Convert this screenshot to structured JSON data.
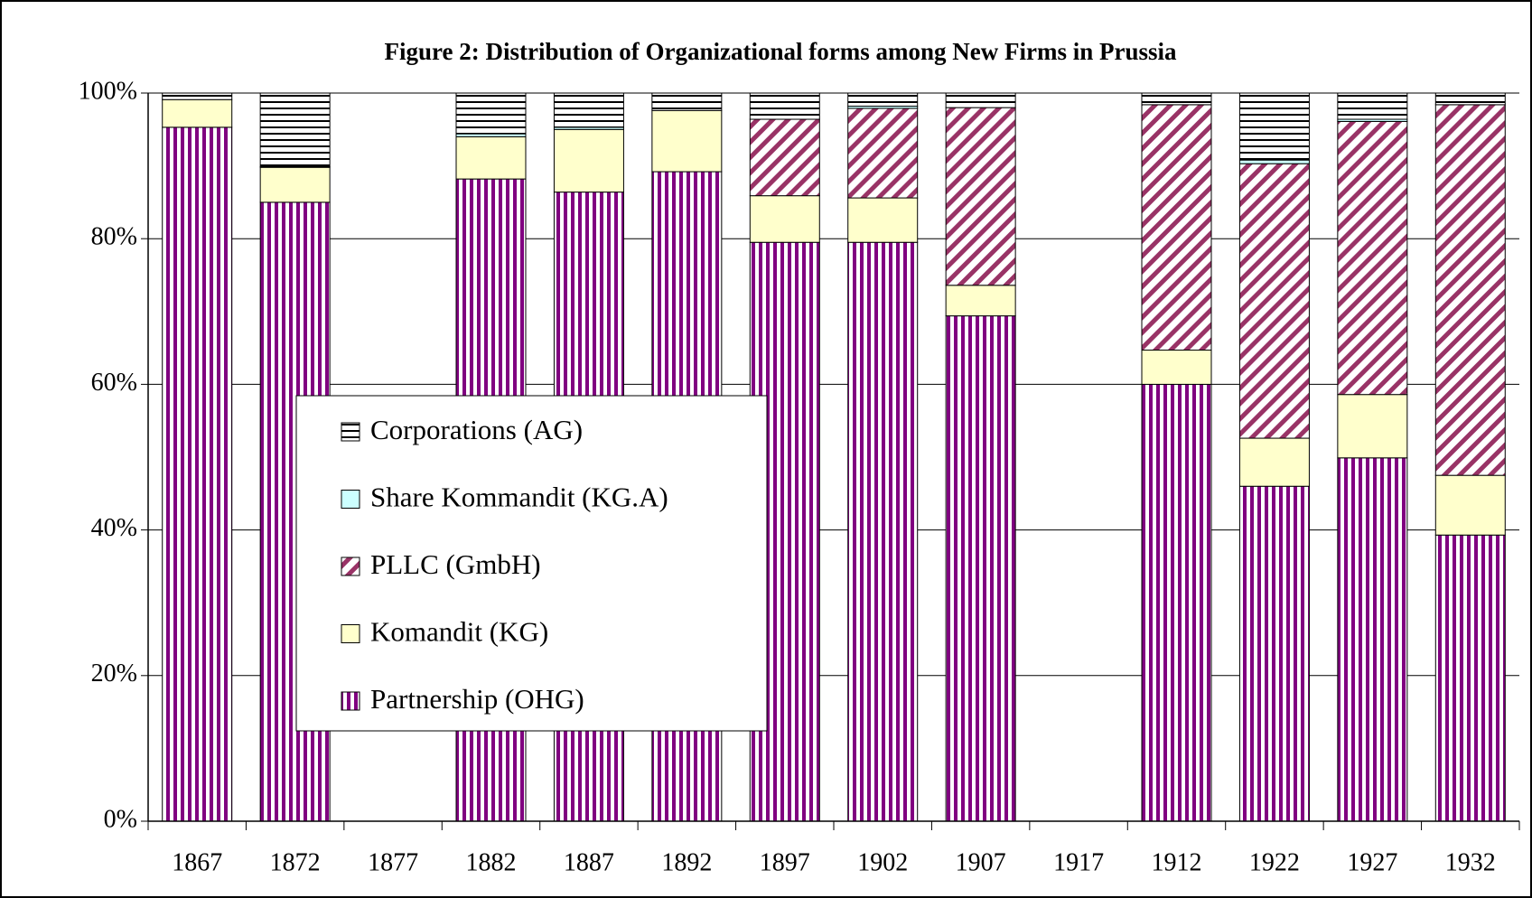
{
  "chart_data": {
    "type": "stacked_bar",
    "title": "Figure 2: Distribution of Organizational forms among New Firms in Prussia",
    "categories": [
      "1867",
      "1872",
      "1877",
      "1882",
      "1887",
      "1892",
      "1897",
      "1902",
      "1907",
      "1917",
      "1912",
      "1922",
      "1927",
      "1932"
    ],
    "series": [
      {
        "name": "Partnership (OHG)",
        "color": "#800080",
        "pattern": "vertical",
        "values": [
          95.3,
          85.0,
          null,
          88.2,
          86.4,
          89.2,
          79.5,
          79.5,
          69.4,
          null,
          60.0,
          46.0,
          49.9,
          39.3
        ]
      },
      {
        "name": "Komandit (KG)",
        "color": "#ffffcc",
        "pattern": "solid",
        "values": [
          3.8,
          4.8,
          null,
          5.8,
          8.6,
          8.4,
          6.4,
          6.1,
          4.2,
          null,
          4.7,
          6.6,
          8.7,
          8.2
        ]
      },
      {
        "name": "PLLC (GmbH)",
        "color": "#993366",
        "pattern": "diagonal",
        "values": [
          0,
          0,
          null,
          0,
          0,
          0,
          10.5,
          12.3,
          24.4,
          null,
          33.7,
          37.7,
          37.5,
          50.9
        ]
      },
      {
        "name": "Share Kommandit (KG.A)",
        "color": "#ccffff",
        "pattern": "solid",
        "values": [
          0,
          0.1,
          null,
          0.4,
          0.3,
          0,
          0,
          0.3,
          0,
          null,
          0,
          0.5,
          0.3,
          0
        ]
      },
      {
        "name": "Corporations (AG)",
        "color": "#000000",
        "pattern": "horizontal",
        "values": [
          0.9,
          10.1,
          null,
          5.6,
          4.7,
          2.4,
          3.6,
          1.8,
          2.0,
          null,
          1.6,
          9.2,
          3.6,
          1.6
        ]
      }
    ],
    "ylim": [
      0,
      100
    ],
    "yticks": [
      {
        "value": 0,
        "label": "0%"
      },
      {
        "value": 20,
        "label": "20%"
      },
      {
        "value": 40,
        "label": "40%"
      },
      {
        "value": 60,
        "label": "60%"
      },
      {
        "value": 80,
        "label": "80%"
      },
      {
        "value": 100,
        "label": "100%"
      }
    ],
    "grid": true,
    "legend": "inside-left"
  }
}
